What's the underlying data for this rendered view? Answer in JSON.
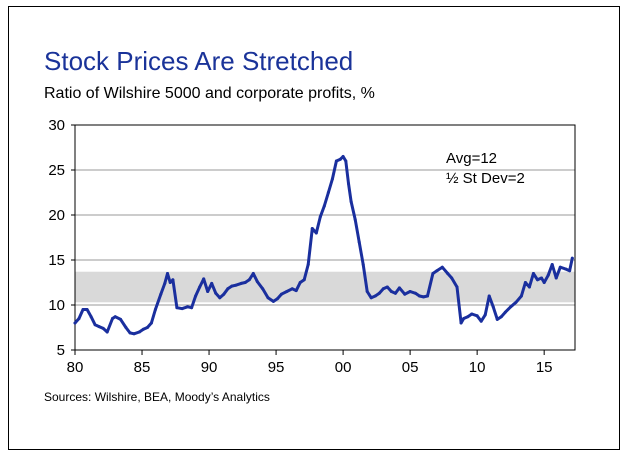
{
  "title": "Stock Prices Are Stretched",
  "subtitle": "Ratio of Wilshire 5000 and corporate profits, %",
  "source": "Sources: Wilshire, BEA, Moody’s Analytics",
  "annotations": [
    "Avg=12",
    "½ St Dev=2"
  ],
  "colors": {
    "line": "#1a2f9e",
    "title": "#1a3399",
    "band": "#d9d9d9"
  },
  "chart_data": {
    "type": "line",
    "title": "Stock Prices Are Stretched",
    "subtitle": "Ratio of Wilshire 5000 and corporate profits, %",
    "xlabel": "",
    "ylabel": "",
    "xlim": [
      1980,
      2017.3
    ],
    "ylim": [
      5,
      30
    ],
    "x_ticks": [
      80,
      85,
      90,
      95,
      0,
      5,
      10,
      15
    ],
    "x_tick_labels": [
      "80",
      "85",
      "90",
      "95",
      "00",
      "05",
      "10",
      "15"
    ],
    "y_ticks": [
      5,
      10,
      15,
      20,
      25,
      30
    ],
    "y_tick_labels": [
      "5",
      "10",
      "15",
      "20",
      "25",
      "30"
    ],
    "grid": "horizontal",
    "band": {
      "low": 10.3,
      "high": 13.7
    },
    "series": [
      {
        "x": [
          1980.0,
          1980.3,
          1980.6,
          1980.9,
          1981.2,
          1981.5,
          1981.8,
          1982.1,
          1982.4,
          1982.8,
          1983.0,
          1983.4,
          1983.8,
          1984.1,
          1984.4,
          1984.8,
          1985.1,
          1985.4,
          1985.7,
          1986.0,
          1986.4,
          1986.7,
          1986.9,
          1987.1,
          1987.3,
          1987.6,
          1988.0,
          1988.4,
          1988.7,
          1989.0,
          1989.3,
          1989.6,
          1989.9,
          1990.2,
          1990.5,
          1990.8,
          1991.1,
          1991.4,
          1991.7,
          1992.0,
          1992.4,
          1992.7,
          1993.0,
          1993.3,
          1993.6,
          1994.0,
          1994.4,
          1994.8,
          1995.1,
          1995.4,
          1995.8,
          1996.2,
          1996.5,
          1996.8,
          1997.1,
          1997.4,
          1997.7,
          1998.0,
          1998.3,
          1998.6,
          1998.9,
          1999.2,
          1999.5,
          1999.8,
          2000.0,
          2000.2,
          2000.4,
          2000.6,
          2000.9,
          2001.2,
          2001.5,
          2001.8,
          2002.1,
          2002.4,
          2002.7,
          2003.0,
          2003.3,
          2003.6,
          2003.9,
          2004.2,
          2004.6,
          2005.0,
          2005.4,
          2005.7,
          2006.0,
          2006.3,
          2006.7,
          2007.0,
          2007.4,
          2007.8,
          2008.1,
          2008.5,
          2008.8,
          2009.0,
          2009.3,
          2009.6,
          2010.0,
          2010.3,
          2010.6,
          2010.9,
          2011.2,
          2011.5,
          2011.8,
          2012.1,
          2012.5,
          2012.9,
          2013.3,
          2013.6,
          2013.9,
          2014.2,
          2014.5,
          2014.8,
          2015.0,
          2015.3,
          2015.6,
          2015.9,
          2016.2,
          2016.6,
          2016.9,
          2017.1
        ],
        "values": [
          8.0,
          8.5,
          9.5,
          9.5,
          8.7,
          7.8,
          7.6,
          7.4,
          7.0,
          8.5,
          8.7,
          8.4,
          7.5,
          6.9,
          6.8,
          7.0,
          7.3,
          7.5,
          8.0,
          9.5,
          11.2,
          12.4,
          13.5,
          12.5,
          12.8,
          9.7,
          9.6,
          9.8,
          9.7,
          11.0,
          12.0,
          12.9,
          11.5,
          12.4,
          11.3,
          10.8,
          11.2,
          11.8,
          12.1,
          12.2,
          12.4,
          12.5,
          12.8,
          13.5,
          12.6,
          11.8,
          10.8,
          10.4,
          10.7,
          11.2,
          11.5,
          11.8,
          11.6,
          12.5,
          12.8,
          14.5,
          18.5,
          18.0,
          19.8,
          21.0,
          22.5,
          24.0,
          26.0,
          26.2,
          26.5,
          26.0,
          23.5,
          21.5,
          19.5,
          17.0,
          14.5,
          11.5,
          10.8,
          11.0,
          11.3,
          11.8,
          12.0,
          11.5,
          11.3,
          11.9,
          11.2,
          11.5,
          11.3,
          11.0,
          10.9,
          11.0,
          13.5,
          13.8,
          14.2,
          13.5,
          13.0,
          12.0,
          8.0,
          8.5,
          8.7,
          9.0,
          8.8,
          8.2,
          8.9,
          11.0,
          9.8,
          8.4,
          8.7,
          9.2,
          9.8,
          10.3,
          11.0,
          12.5,
          12.0,
          13.5,
          12.8,
          13.0,
          12.5,
          13.3,
          14.5,
          13.0,
          14.2,
          14.0,
          13.8,
          15.2
        ]
      }
    ]
  }
}
